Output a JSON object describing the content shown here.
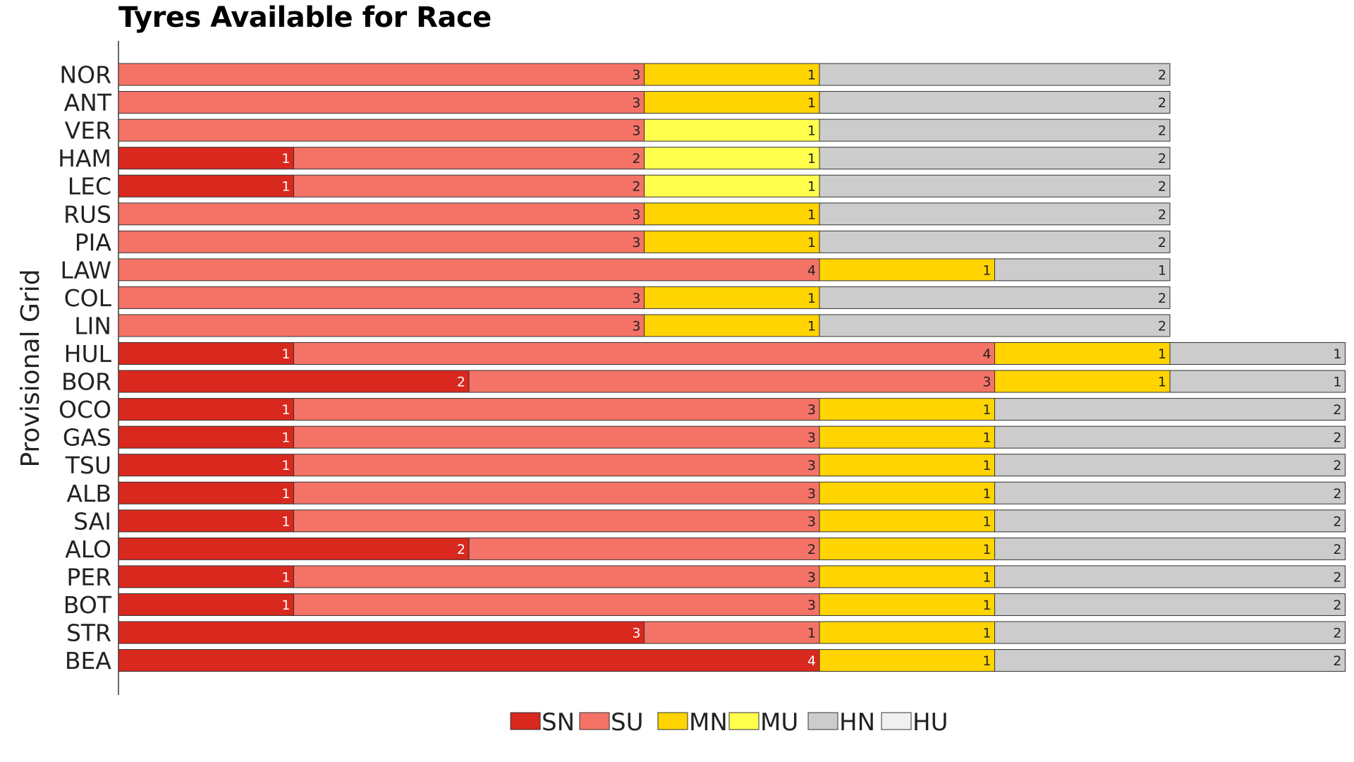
{
  "chart_data": {
    "type": "bar",
    "orientation": "horizontal",
    "stacked": true,
    "title": "Tyres Available for Race",
    "xlabel": "",
    "ylabel": "Provisional Grid",
    "xlim": [
      0,
      7
    ],
    "grid": false,
    "legend_position": "bottom",
    "categories": [
      "NOR",
      "ANT",
      "VER",
      "HAM",
      "LEC",
      "RUS",
      "PIA",
      "LAW",
      "COL",
      "LIN",
      "HUL",
      "BOR",
      "OCO",
      "GAS",
      "TSU",
      "ALB",
      "SAI",
      "ALO",
      "PER",
      "BOT",
      "STR",
      "BEA"
    ],
    "series": [
      {
        "name": "SN",
        "color": "#d9281e",
        "values": [
          0,
          0,
          0,
          1,
          1,
          0,
          0,
          0,
          0,
          0,
          1,
          2,
          1,
          1,
          1,
          1,
          1,
          2,
          1,
          1,
          3,
          4
        ]
      },
      {
        "name": "SU",
        "color": "#f47366",
        "values": [
          3,
          3,
          3,
          2,
          2,
          3,
          3,
          4,
          3,
          3,
          4,
          3,
          3,
          3,
          3,
          3,
          3,
          2,
          3,
          3,
          1,
          0
        ]
      },
      {
        "name": "MN",
        "color": "#ffd400",
        "values": [
          1,
          1,
          0,
          0,
          0,
          1,
          1,
          1,
          1,
          1,
          1,
          1,
          1,
          1,
          1,
          1,
          1,
          1,
          1,
          1,
          1,
          1
        ]
      },
      {
        "name": "MU",
        "color": "#ffff4d",
        "values": [
          0,
          0,
          1,
          1,
          1,
          0,
          0,
          0,
          0,
          0,
          0,
          0,
          0,
          0,
          0,
          0,
          0,
          0,
          0,
          0,
          0,
          0
        ]
      },
      {
        "name": "HN",
        "color": "#cccccc",
        "values": [
          2,
          2,
          2,
          2,
          2,
          2,
          2,
          1,
          2,
          2,
          1,
          1,
          2,
          2,
          2,
          2,
          2,
          2,
          2,
          2,
          2,
          2
        ]
      },
      {
        "name": "HU",
        "color": "#f0f0f0",
        "values": [
          0,
          0,
          0,
          0,
          0,
          0,
          0,
          0,
          0,
          0,
          0,
          0,
          0,
          0,
          0,
          0,
          0,
          0,
          0,
          0,
          0,
          0
        ]
      }
    ]
  }
}
